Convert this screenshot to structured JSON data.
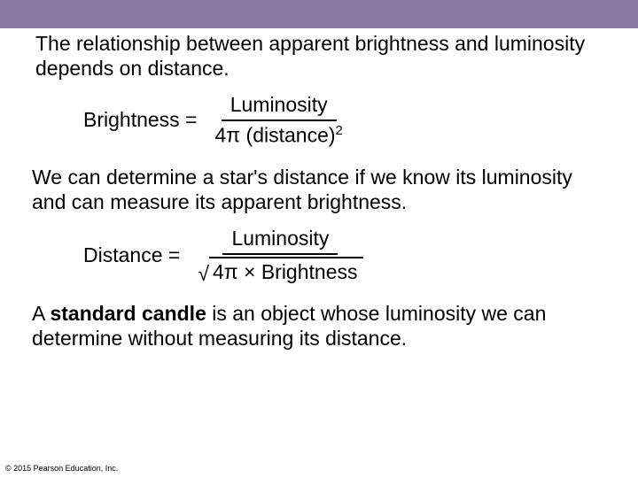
{
  "colors": {
    "topbar": "#8b7ba2",
    "background": "#ffffff",
    "text": "#000000"
  },
  "para1": "The relationship between apparent brightness and luminosity depends on distance.",
  "eq1": {
    "lhs": "Brightness =",
    "numerator": "Luminosity",
    "denom_pre": "4",
    "denom_pi": "π",
    "denom_mid": " (distance)",
    "denom_exp": "2"
  },
  "para2": "We can determine a star's distance if we know its luminosity and can measure its apparent brightness.",
  "eq2": {
    "lhs": "Distance =",
    "numerator": "Luminosity",
    "sqrt": "√",
    "denom_pre": "4",
    "denom_pi": "π",
    "denom_post": " × Brightness"
  },
  "para3_pre": "A ",
  "para3_bold": "standard candle",
  "para3_post": " is an object whose luminosity we can determine without measuring its distance.",
  "footer": "© 2015 Pearson Education, Inc."
}
